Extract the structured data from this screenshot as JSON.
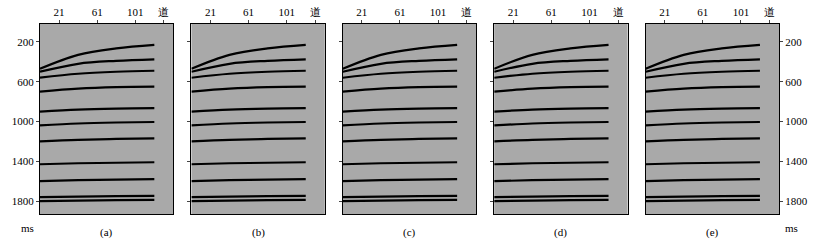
{
  "chart_data": [
    {
      "type": "line",
      "title": "(a)",
      "ylabel": "ms",
      "tick_labels": true,
      "color": "#000000",
      "x": [
        1,
        41,
        81,
        121
      ],
      "xlim": [
        1,
        141
      ],
      "xticks": [
        21,
        61,
        101,
        {
          "value": 131,
          "label": "道"
        }
      ],
      "ylim": [
        1930,
        20
      ],
      "yticks": [
        200,
        600,
        1000,
        1400,
        1800
      ],
      "series": [
        {
          "values": [
            470,
            330,
            265,
            230
          ]
        },
        {
          "values": [
            500,
            420,
            390,
            375
          ]
        },
        {
          "values": [
            560,
            520,
            500,
            490
          ]
        },
        {
          "values": [
            700,
            670,
            655,
            650
          ]
        },
        {
          "values": [
            900,
            880,
            870,
            865
          ]
        },
        {
          "values": [
            1040,
            1020,
            1010,
            1005
          ]
        },
        {
          "values": [
            1200,
            1185,
            1175,
            1170
          ]
        },
        {
          "values": [
            1430,
            1420,
            1415,
            1410
          ]
        },
        {
          "values": [
            1600,
            1590,
            1585,
            1580
          ]
        },
        {
          "values": [
            1760,
            1755,
            1750,
            1748
          ]
        },
        {
          "values": [
            1800,
            1795,
            1790,
            1788
          ]
        }
      ]
    },
    {
      "type": "line",
      "title": "(b)",
      "tick_labels": "x",
      "color": "#000000",
      "x": [
        1,
        41,
        81,
        121
      ],
      "xlim": [
        1,
        141
      ],
      "xticks": [
        21,
        61,
        101,
        {
          "value": 131,
          "label": "道"
        }
      ],
      "ylim": [
        1930,
        20
      ],
      "yticks": [
        200,
        600,
        1000,
        1400,
        1800
      ],
      "series": [
        {
          "values": [
            470,
            330,
            265,
            230
          ]
        },
        {
          "values": [
            500,
            420,
            390,
            375
          ]
        },
        {
          "values": [
            560,
            520,
            500,
            490
          ]
        },
        {
          "values": [
            700,
            670,
            655,
            650
          ]
        },
        {
          "values": [
            900,
            880,
            870,
            865
          ]
        },
        {
          "values": [
            1040,
            1020,
            1010,
            1005
          ]
        },
        {
          "values": [
            1200,
            1185,
            1175,
            1170
          ]
        },
        {
          "values": [
            1430,
            1420,
            1415,
            1410
          ]
        },
        {
          "values": [
            1600,
            1590,
            1585,
            1580
          ]
        },
        {
          "values": [
            1760,
            1755,
            1750,
            1748
          ]
        },
        {
          "values": [
            1800,
            1795,
            1790,
            1788
          ]
        }
      ]
    },
    {
      "type": "line",
      "title": "(c)",
      "tick_labels": "x",
      "color": "#000000",
      "x": [
        1,
        41,
        81,
        121
      ],
      "xlim": [
        1,
        141
      ],
      "xticks": [
        21,
        61,
        101,
        {
          "value": 131,
          "label": "道"
        }
      ],
      "ylim": [
        1930,
        20
      ],
      "yticks": [
        200,
        600,
        1000,
        1400,
        1800
      ],
      "series": [
        {
          "values": [
            470,
            330,
            265,
            230
          ]
        },
        {
          "values": [
            500,
            420,
            390,
            375
          ]
        },
        {
          "values": [
            560,
            520,
            500,
            490
          ]
        },
        {
          "values": [
            700,
            670,
            655,
            650
          ]
        },
        {
          "values": [
            900,
            880,
            870,
            865
          ]
        },
        {
          "values": [
            1040,
            1020,
            1010,
            1005
          ]
        },
        {
          "values": [
            1200,
            1185,
            1175,
            1170
          ]
        },
        {
          "values": [
            1430,
            1420,
            1415,
            1410
          ]
        },
        {
          "values": [
            1600,
            1590,
            1585,
            1580
          ]
        },
        {
          "values": [
            1760,
            1755,
            1750,
            1748
          ]
        },
        {
          "values": [
            1800,
            1795,
            1790,
            1788
          ]
        }
      ]
    },
    {
      "type": "line",
      "title": "(d)",
      "tick_labels": "x",
      "color": "#000000",
      "x": [
        1,
        41,
        81,
        121
      ],
      "xlim": [
        1,
        141
      ],
      "xticks": [
        21,
        61,
        101,
        {
          "value": 131,
          "label": "道"
        }
      ],
      "ylim": [
        1930,
        20
      ],
      "yticks": [
        200,
        600,
        1000,
        1400,
        1800
      ],
      "series": [
        {
          "values": [
            470,
            330,
            265,
            230
          ]
        },
        {
          "values": [
            500,
            420,
            390,
            375
          ]
        },
        {
          "values": [
            560,
            520,
            500,
            490
          ]
        },
        {
          "values": [
            700,
            670,
            655,
            650
          ]
        },
        {
          "values": [
            900,
            880,
            870,
            865
          ]
        },
        {
          "values": [
            1040,
            1020,
            1010,
            1005
          ]
        },
        {
          "values": [
            1200,
            1185,
            1175,
            1170
          ]
        },
        {
          "values": [
            1430,
            1420,
            1415,
            1410
          ]
        },
        {
          "values": [
            1600,
            1590,
            1585,
            1580
          ]
        },
        {
          "values": [
            1760,
            1755,
            1750,
            1748
          ]
        },
        {
          "values": [
            1800,
            1795,
            1790,
            1788
          ]
        }
      ]
    },
    {
      "type": "line",
      "title": "(e)",
      "ylabel": "ms",
      "tick_labels": true,
      "color": "#000000",
      "x": [
        1,
        41,
        81,
        121
      ],
      "xlim": [
        1,
        141
      ],
      "xticks": [
        21,
        61,
        101,
        {
          "value": 131,
          "label": "道"
        }
      ],
      "ylim": [
        1930,
        20
      ],
      "yticks": [
        200,
        600,
        1000,
        1400,
        1800
      ],
      "series": [
        {
          "values": [
            470,
            330,
            265,
            230
          ]
        },
        {
          "values": [
            500,
            420,
            390,
            375
          ]
        },
        {
          "values": [
            560,
            520,
            500,
            490
          ]
        },
        {
          "values": [
            700,
            670,
            655,
            650
          ]
        },
        {
          "values": [
            900,
            880,
            870,
            865
          ]
        },
        {
          "values": [
            1040,
            1020,
            1010,
            1005
          ]
        },
        {
          "values": [
            1200,
            1185,
            1175,
            1170
          ]
        },
        {
          "values": [
            1430,
            1420,
            1415,
            1410
          ]
        },
        {
          "values": [
            1600,
            1590,
            1585,
            1580
          ]
        },
        {
          "values": [
            1760,
            1755,
            1750,
            1748
          ]
        },
        {
          "values": [
            1800,
            1795,
            1790,
            1788
          ]
        }
      ]
    }
  ]
}
